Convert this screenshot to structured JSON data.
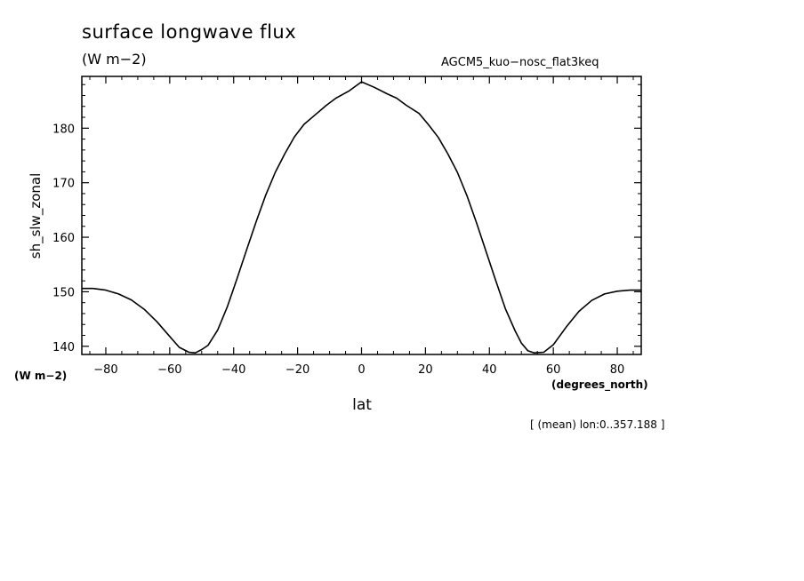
{
  "chart_data": {
    "type": "line",
    "title": "surface longwave flux",
    "subtitle": "(W m−2)",
    "dataset": "AGCM5_kuo−nosc_flat3keq",
    "xlabel": "lat",
    "xunits": "(degrees_north)",
    "ylabel": "sh_slw_zonal",
    "yunits": "(W m−2)",
    "footnote": "[ (mean) lon:0..357.188 ]",
    "xlim": [
      -87.5,
      87.5
    ],
    "ylim": [
      138.5,
      189.5
    ],
    "xticks": [
      -80,
      -60,
      -40,
      -20,
      0,
      20,
      40,
      60,
      80
    ],
    "xtick_labels": [
      "−80",
      "−60",
      "−40",
      "−20",
      "0",
      "20",
      "40",
      "60",
      "80"
    ],
    "yticks": [
      140,
      150,
      160,
      170,
      180
    ],
    "ytick_labels": [
      "140",
      "150",
      "160",
      "170",
      "180"
    ],
    "grid": false,
    "series": [
      {
        "color": "#000000",
        "x": [
          -87.5,
          -84,
          -80,
          -76,
          -72,
          -68,
          -64,
          -60,
          -57,
          -54,
          -52,
          -50,
          -48,
          -45,
          -42,
          -39,
          -36,
          -33,
          -30,
          -27,
          -24,
          -21,
          -18,
          -14,
          -11,
          -8,
          -4,
          0,
          4,
          8,
          11,
          14,
          18,
          21,
          24,
          27,
          30,
          33,
          36,
          39,
          42,
          45,
          48,
          50,
          52,
          54,
          57,
          60,
          64,
          68,
          72,
          76,
          80,
          84,
          87.5
        ],
        "y": [
          150.6,
          150.6,
          150.3,
          149.6,
          148.5,
          146.8,
          144.5,
          141.8,
          139.8,
          138.9,
          138.8,
          139.4,
          140.2,
          143.0,
          147.2,
          152.3,
          157.6,
          162.8,
          167.7,
          171.9,
          175.3,
          178.4,
          180.7,
          182.7,
          184.2,
          185.5,
          186.8,
          188.5,
          187.5,
          186.3,
          185.5,
          184.2,
          182.7,
          180.6,
          178.3,
          175.3,
          171.9,
          167.6,
          162.6,
          157.3,
          152.0,
          146.9,
          142.9,
          140.6,
          139.2,
          138.8,
          138.9,
          140.3,
          143.5,
          146.4,
          148.4,
          149.6,
          150.1,
          150.3,
          150.3
        ]
      }
    ]
  }
}
